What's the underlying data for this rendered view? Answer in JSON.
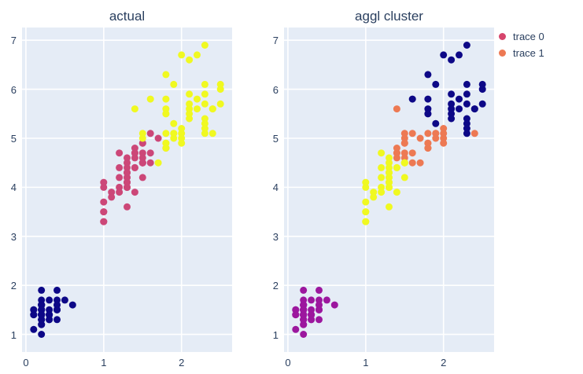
{
  "figure": {
    "background": "#ffffff",
    "plot_background": "#e5ecf6",
    "grid_color": "#ffffff",
    "text_color": "#2a3f5f"
  },
  "chart_data": {
    "type": "scatter",
    "description": "Two side-by-side scatter subplots of iris petal measurements (x = petal width, y = petal length). Left subplot colored by actual species, right subplot colored by agglomerative-clustering label. Colors come from the plasma colorscale.",
    "subplots": [
      {
        "title": "actual",
        "color_key": 2,
        "x_ticks": [
          0,
          1,
          2
        ],
        "y_ticks": [
          1,
          2,
          3,
          4,
          5,
          6,
          7
        ],
        "x_range": [
          -0.05,
          2.65
        ],
        "y_range": [
          0.64,
          7.26
        ],
        "grid": true
      },
      {
        "title": "aggl cluster",
        "color_key": 3,
        "x_ticks": [
          0,
          1,
          2
        ],
        "y_ticks": [
          1,
          2,
          3,
          4,
          5,
          6,
          7
        ],
        "x_range": [
          -0.05,
          2.65
        ],
        "y_range": [
          0.64,
          7.26
        ],
        "grid": true
      }
    ],
    "palettes": {
      "species": [
        "#0d0887",
        "#cc4778",
        "#f0f921"
      ],
      "cluster": [
        "#0d0887",
        "#9c179e",
        "#ed7953",
        "#f0f921"
      ]
    },
    "legend": {
      "items": [
        {
          "label": "trace 0",
          "color": "#d6456c"
        },
        {
          "label": "trace 1",
          "color": "#ed7953"
        }
      ]
    },
    "marker_radius": 4.5,
    "points_format": [
      "x",
      "y",
      "species",
      "cluster"
    ],
    "points": [
      [
        0.2,
        1.4,
        0,
        1
      ],
      [
        0.2,
        1.4,
        0,
        1
      ],
      [
        0.2,
        1.3,
        0,
        1
      ],
      [
        0.2,
        1.5,
        0,
        1
      ],
      [
        0.2,
        1.4,
        0,
        1
      ],
      [
        0.4,
        1.7,
        0,
        1
      ],
      [
        0.3,
        1.4,
        0,
        1
      ],
      [
        0.2,
        1.5,
        0,
        1
      ],
      [
        0.2,
        1.4,
        0,
        1
      ],
      [
        0.1,
        1.5,
        0,
        1
      ],
      [
        0.2,
        1.5,
        0,
        1
      ],
      [
        0.2,
        1.6,
        0,
        1
      ],
      [
        0.1,
        1.4,
        0,
        1
      ],
      [
        0.1,
        1.1,
        0,
        1
      ],
      [
        0.2,
        1.2,
        0,
        1
      ],
      [
        0.4,
        1.5,
        0,
        1
      ],
      [
        0.4,
        1.3,
        0,
        1
      ],
      [
        0.3,
        1.4,
        0,
        1
      ],
      [
        0.3,
        1.7,
        0,
        1
      ],
      [
        0.3,
        1.5,
        0,
        1
      ],
      [
        0.2,
        1.7,
        0,
        1
      ],
      [
        0.4,
        1.5,
        0,
        1
      ],
      [
        0.2,
        1.0,
        0,
        1
      ],
      [
        0.5,
        1.7,
        0,
        1
      ],
      [
        0.2,
        1.9,
        0,
        1
      ],
      [
        0.2,
        1.6,
        0,
        1
      ],
      [
        0.4,
        1.6,
        0,
        1
      ],
      [
        0.2,
        1.5,
        0,
        1
      ],
      [
        0.2,
        1.4,
        0,
        1
      ],
      [
        0.2,
        1.6,
        0,
        1
      ],
      [
        0.2,
        1.6,
        0,
        1
      ],
      [
        0.4,
        1.5,
        0,
        1
      ],
      [
        0.1,
        1.5,
        0,
        1
      ],
      [
        0.2,
        1.4,
        0,
        1
      ],
      [
        0.2,
        1.5,
        0,
        1
      ],
      [
        0.2,
        1.2,
        0,
        1
      ],
      [
        0.2,
        1.3,
        0,
        1
      ],
      [
        0.1,
        1.4,
        0,
        1
      ],
      [
        0.2,
        1.3,
        0,
        1
      ],
      [
        0.2,
        1.5,
        0,
        1
      ],
      [
        0.3,
        1.3,
        0,
        1
      ],
      [
        0.3,
        1.3,
        0,
        1
      ],
      [
        0.2,
        1.3,
        0,
        1
      ],
      [
        0.6,
        1.6,
        0,
        1
      ],
      [
        0.4,
        1.9,
        0,
        1
      ],
      [
        0.3,
        1.4,
        0,
        1
      ],
      [
        0.2,
        1.6,
        0,
        1
      ],
      [
        0.2,
        1.4,
        0,
        1
      ],
      [
        0.2,
        1.5,
        0,
        1
      ],
      [
        0.2,
        1.4,
        0,
        1
      ],
      [
        1.4,
        4.7,
        1,
        2
      ],
      [
        1.5,
        4.5,
        1,
        3
      ],
      [
        1.5,
        4.9,
        1,
        2
      ],
      [
        1.3,
        4.0,
        1,
        3
      ],
      [
        1.5,
        4.6,
        1,
        2
      ],
      [
        1.3,
        4.5,
        1,
        3
      ],
      [
        1.6,
        4.7,
        1,
        2
      ],
      [
        1.0,
        3.3,
        1,
        3
      ],
      [
        1.3,
        4.6,
        1,
        3
      ],
      [
        1.4,
        3.9,
        1,
        3
      ],
      [
        1.0,
        3.5,
        1,
        3
      ],
      [
        1.5,
        4.2,
        1,
        3
      ],
      [
        1.0,
        4.0,
        1,
        3
      ],
      [
        1.4,
        4.7,
        1,
        2
      ],
      [
        1.3,
        3.6,
        1,
        3
      ],
      [
        1.4,
        4.4,
        1,
        3
      ],
      [
        1.5,
        4.5,
        1,
        3
      ],
      [
        1.0,
        4.1,
        1,
        3
      ],
      [
        1.5,
        4.5,
        1,
        3
      ],
      [
        1.1,
        3.9,
        1,
        3
      ],
      [
        1.8,
        4.8,
        1,
        2
      ],
      [
        1.3,
        4.0,
        1,
        3
      ],
      [
        1.5,
        4.9,
        1,
        2
      ],
      [
        1.2,
        4.7,
        1,
        3
      ],
      [
        1.3,
        4.3,
        1,
        3
      ],
      [
        1.4,
        4.4,
        1,
        3
      ],
      [
        1.4,
        4.8,
        1,
        2
      ],
      [
        1.7,
        5.0,
        1,
        2
      ],
      [
        1.5,
        4.5,
        1,
        3
      ],
      [
        1.0,
        3.5,
        1,
        3
      ],
      [
        1.1,
        3.8,
        1,
        3
      ],
      [
        1.0,
        3.7,
        1,
        3
      ],
      [
        1.2,
        3.9,
        1,
        3
      ],
      [
        1.6,
        5.1,
        1,
        2
      ],
      [
        1.5,
        4.5,
        1,
        3
      ],
      [
        1.6,
        4.5,
        1,
        2
      ],
      [
        1.5,
        4.7,
        1,
        2
      ],
      [
        1.3,
        4.4,
        1,
        3
      ],
      [
        1.3,
        4.1,
        1,
        3
      ],
      [
        1.3,
        4.0,
        1,
        3
      ],
      [
        1.2,
        4.4,
        1,
        3
      ],
      [
        1.4,
        4.6,
        1,
        2
      ],
      [
        1.2,
        4.0,
        1,
        3
      ],
      [
        1.0,
        3.3,
        1,
        3
      ],
      [
        1.3,
        4.2,
        1,
        3
      ],
      [
        1.2,
        4.2,
        1,
        3
      ],
      [
        1.3,
        4.2,
        1,
        3
      ],
      [
        1.3,
        4.3,
        1,
        3
      ],
      [
        1.3,
        4.1,
        1,
        3
      ],
      [
        2.5,
        6.0,
        2,
        0
      ],
      [
        1.9,
        5.1,
        2,
        2
      ],
      [
        2.1,
        5.9,
        2,
        0
      ],
      [
        1.8,
        5.6,
        2,
        0
      ],
      [
        2.2,
        5.8,
        2,
        0
      ],
      [
        2.1,
        6.6,
        2,
        0
      ],
      [
        1.7,
        4.5,
        2,
        2
      ],
      [
        1.8,
        6.3,
        2,
        0
      ],
      [
        1.8,
        5.8,
        2,
        0
      ],
      [
        2.5,
        6.1,
        2,
        0
      ],
      [
        2.0,
        5.1,
        2,
        2
      ],
      [
        1.9,
        5.3,
        2,
        0
      ],
      [
        2.1,
        5.5,
        2,
        0
      ],
      [
        2.0,
        5.0,
        2,
        2
      ],
      [
        2.4,
        5.1,
        2,
        2
      ],
      [
        2.3,
        5.3,
        2,
        0
      ],
      [
        1.8,
        5.5,
        2,
        0
      ],
      [
        2.2,
        6.7,
        2,
        0
      ],
      [
        2.3,
        6.9,
        2,
        0
      ],
      [
        1.5,
        5.0,
        2,
        2
      ],
      [
        2.3,
        5.7,
        2,
        0
      ],
      [
        2.0,
        4.9,
        2,
        2
      ],
      [
        2.0,
        6.7,
        2,
        0
      ],
      [
        1.8,
        4.9,
        2,
        2
      ],
      [
        2.1,
        5.7,
        2,
        0
      ],
      [
        1.8,
        4.8,
        2,
        2
      ],
      [
        1.8,
        4.9,
        2,
        2
      ],
      [
        2.1,
        5.6,
        2,
        0
      ],
      [
        1.6,
        5.8,
        2,
        0
      ],
      [
        1.9,
        6.1,
        2,
        0
      ],
      [
        2.2,
        5.6,
        2,
        0
      ],
      [
        1.5,
        5.1,
        2,
        2
      ],
      [
        1.4,
        5.6,
        2,
        2
      ],
      [
        2.3,
        6.1,
        2,
        0
      ],
      [
        2.4,
        5.6,
        2,
        0
      ],
      [
        1.8,
        5.5,
        2,
        0
      ],
      [
        1.8,
        4.8,
        2,
        2
      ],
      [
        2.1,
        5.4,
        2,
        0
      ],
      [
        2.4,
        5.6,
        2,
        0
      ],
      [
        2.3,
        5.1,
        2,
        0
      ],
      [
        1.9,
        5.1,
        2,
        2
      ],
      [
        2.3,
        5.9,
        2,
        0
      ],
      [
        2.5,
        5.7,
        2,
        0
      ],
      [
        2.3,
        5.2,
        2,
        0
      ],
      [
        1.9,
        5.0,
        2,
        2
      ],
      [
        2.0,
        5.2,
        2,
        2
      ],
      [
        2.3,
        5.4,
        2,
        0
      ],
      [
        1.8,
        5.1,
        2,
        2
      ]
    ]
  }
}
